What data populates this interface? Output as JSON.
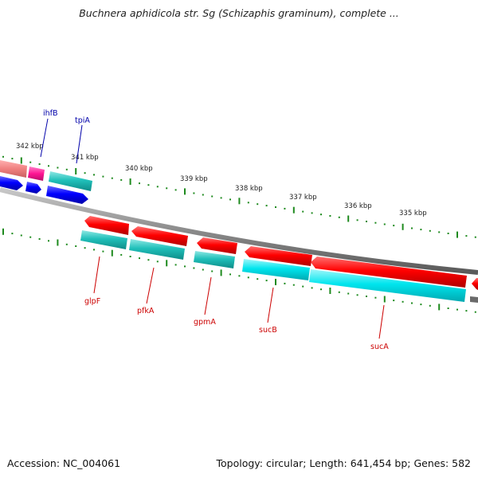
{
  "title": "Buchnera aphidicola str. Sg (Schizaphis graminum), complete ...",
  "footer": {
    "accession": "Accession: NC_004061",
    "stats": "Topology: circular; Length: 641,454 bp; Genes: 582"
  },
  "ruler_labels": [
    "342 kbp",
    "341 kbp",
    "340 kbp",
    "339 kbp",
    "338 kbp",
    "337 kbp",
    "336 kbp",
    "335 kbp"
  ],
  "gene_labels": {
    "top": [
      "ihfB",
      "tpiA"
    ],
    "bottom": [
      "glpF",
      "pfkA",
      "gpmA",
      "sucB",
      "sucA"
    ]
  },
  "colors": {
    "cds_forward": "#ff0000",
    "cds_reverse": "#00e5ee",
    "rna": "#ff1493",
    "blue_feature": "#0000ff",
    "top_label": "#0000aa",
    "bottom_label": "#cc0000",
    "tick": "#1e8a1e",
    "backbone": "#808080"
  }
}
